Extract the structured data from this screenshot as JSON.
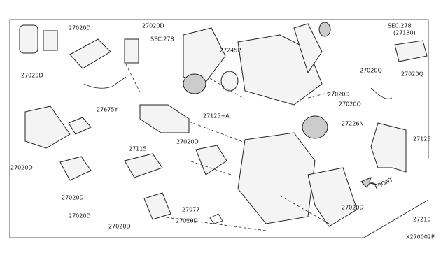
{
  "labels": [
    {
      "text": "27020D"
    },
    {
      "text": "27020D"
    },
    {
      "text": "SEC.278"
    },
    {
      "text": "27245P"
    },
    {
      "text": "SEC.278"
    },
    {
      "text": "(27130)"
    },
    {
      "text": "27020D"
    },
    {
      "text": "27020Q"
    },
    {
      "text": "27020Q"
    },
    {
      "text": "27675Y"
    },
    {
      "text": "27125+A"
    },
    {
      "text": "27020D"
    },
    {
      "text": "27020Q"
    },
    {
      "text": "27226N"
    },
    {
      "text": "27125"
    },
    {
      "text": "27020D"
    },
    {
      "text": "27115"
    },
    {
      "text": "27020D"
    },
    {
      "text": "FRONT"
    },
    {
      "text": "27020D"
    },
    {
      "text": "27210"
    },
    {
      "text": "27020D"
    },
    {
      "text": "27077"
    },
    {
      "text": "27020D"
    },
    {
      "text": "27020D"
    },
    {
      "text": "27020D"
    },
    {
      "text": "X270002P"
    }
  ]
}
